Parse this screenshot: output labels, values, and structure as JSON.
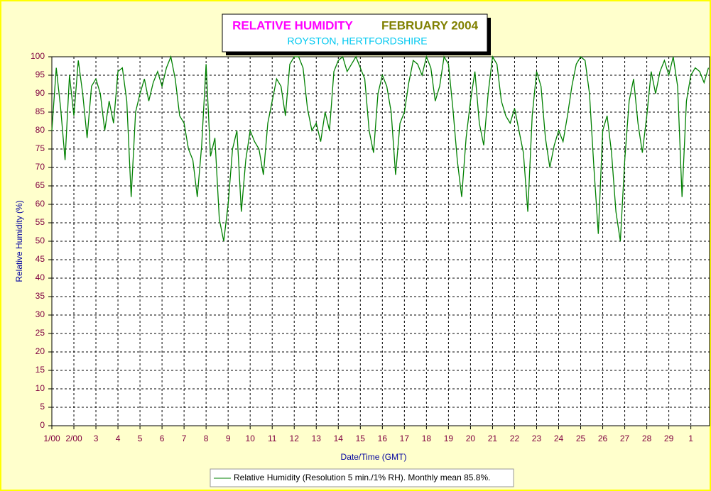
{
  "chart_data": {
    "type": "line",
    "title": "RELATIVE HUMIDITY",
    "title_month": "FEBRUARY 2004",
    "subtitle": "ROYSTON, HERTFORDSHIRE",
    "x_label": "Date/Time (GMT)",
    "y_label": "Relative Humidity (%)",
    "xlim": [
      0,
      29.85
    ],
    "ylim": [
      0,
      100
    ],
    "grid": true,
    "xticks": [
      {
        "value": 0,
        "label": "1/00"
      },
      {
        "value": 1,
        "label": "2/00"
      },
      {
        "value": 2,
        "label": "3"
      },
      {
        "value": 3,
        "label": "4"
      },
      {
        "value": 4,
        "label": "5"
      },
      {
        "value": 5,
        "label": "6"
      },
      {
        "value": 6,
        "label": "7"
      },
      {
        "value": 7,
        "label": "8"
      },
      {
        "value": 8,
        "label": "9"
      },
      {
        "value": 9,
        "label": "10"
      },
      {
        "value": 10,
        "label": "11"
      },
      {
        "value": 11,
        "label": "12"
      },
      {
        "value": 12,
        "label": "13"
      },
      {
        "value": 13,
        "label": "14"
      },
      {
        "value": 14,
        "label": "15"
      },
      {
        "value": 15,
        "label": "16"
      },
      {
        "value": 16,
        "label": "17"
      },
      {
        "value": 17,
        "label": "18"
      },
      {
        "value": 18,
        "label": "19"
      },
      {
        "value": 19,
        "label": "20"
      },
      {
        "value": 20,
        "label": "21"
      },
      {
        "value": 21,
        "label": "22"
      },
      {
        "value": 22,
        "label": "23"
      },
      {
        "value": 23,
        "label": "24"
      },
      {
        "value": 24,
        "label": "25"
      },
      {
        "value": 25,
        "label": "26"
      },
      {
        "value": 26,
        "label": "27"
      },
      {
        "value": 27,
        "label": "28"
      },
      {
        "value": 28,
        "label": "29"
      },
      {
        "value": 29,
        "label": "1"
      }
    ],
    "yticks": [
      0,
      5,
      10,
      15,
      20,
      25,
      30,
      35,
      40,
      45,
      50,
      55,
      60,
      65,
      70,
      75,
      80,
      85,
      90,
      95,
      100
    ],
    "x": [
      0,
      0.2,
      0.4,
      0.6,
      0.8,
      1,
      1.2,
      1.4,
      1.6,
      1.8,
      2,
      2.2,
      2.4,
      2.6,
      2.8,
      3,
      3.2,
      3.4,
      3.6,
      3.8,
      4,
      4.2,
      4.4,
      4.6,
      4.8,
      5,
      5.2,
      5.4,
      5.6,
      5.8,
      6,
      6.2,
      6.4,
      6.6,
      6.8,
      7,
      7.2,
      7.4,
      7.6,
      7.8,
      8,
      8.2,
      8.4,
      8.6,
      8.8,
      9,
      9.2,
      9.4,
      9.6,
      9.8,
      10,
      10.2,
      10.4,
      10.6,
      10.8,
      11,
      11.2,
      11.4,
      11.6,
      11.8,
      12,
      12.2,
      12.4,
      12.6,
      12.8,
      13,
      13.2,
      13.4,
      13.6,
      13.8,
      14,
      14.2,
      14.4,
      14.6,
      14.8,
      15,
      15.2,
      15.4,
      15.6,
      15.8,
      16,
      16.2,
      16.4,
      16.6,
      16.8,
      17,
      17.2,
      17.4,
      17.6,
      17.8,
      18,
      18.2,
      18.4,
      18.6,
      18.8,
      19,
      19.2,
      19.4,
      19.6,
      19.8,
      20,
      20.2,
      20.4,
      20.6,
      20.8,
      21,
      21.2,
      21.4,
      21.6,
      21.8,
      22,
      22.2,
      22.4,
      22.6,
      22.8,
      23,
      23.2,
      23.4,
      23.6,
      23.8,
      24,
      24.2,
      24.4,
      24.6,
      24.8,
      25,
      25.2,
      25.4,
      25.6,
      25.8,
      26,
      26.2,
      26.4,
      26.6,
      26.8,
      27,
      27.2,
      27.4,
      27.6,
      27.8,
      28,
      28.2,
      28.4,
      28.6,
      28.8,
      29,
      29.2,
      29.4,
      29.6,
      29.8
    ],
    "series": [
      {
        "name": "Relative Humidity (Resolution 5 min./1% RH). Monthly mean 85.8%.",
        "color": "#008000",
        "values": [
          80,
          97,
          86,
          72,
          95,
          84,
          99,
          90,
          78,
          92,
          94,
          90,
          80,
          88,
          82,
          96,
          97,
          88,
          62,
          85,
          90,
          94,
          88,
          93,
          96,
          92,
          97,
          100,
          94,
          84,
          82,
          75,
          72,
          62,
          76,
          98,
          73,
          78,
          56,
          50,
          60,
          75,
          80,
          58,
          72,
          80,
          77,
          75,
          68,
          82,
          88,
          94,
          92,
          84,
          98,
          100,
          100,
          97,
          86,
          80,
          82,
          77,
          85,
          80,
          96,
          99,
          100,
          96,
          98,
          100,
          97,
          94,
          80,
          74,
          90,
          95,
          92,
          85,
          68,
          82,
          85,
          93,
          99,
          98,
          95,
          100,
          97,
          88,
          92,
          100,
          98,
          86,
          72,
          62,
          78,
          88,
          96,
          82,
          76,
          90,
          100,
          98,
          88,
          84,
          82,
          86,
          80,
          74,
          58,
          84,
          96,
          92,
          78,
          70,
          76,
          80,
          77,
          84,
          92,
          98,
          100,
          99,
          90,
          70,
          52,
          80,
          84,
          74,
          58,
          50,
          72,
          88,
          94,
          82,
          74,
          84,
          96,
          90,
          96,
          99,
          95,
          100,
          92,
          62,
          88,
          95,
          97,
          96,
          93,
          97
        ]
      }
    ]
  }
}
